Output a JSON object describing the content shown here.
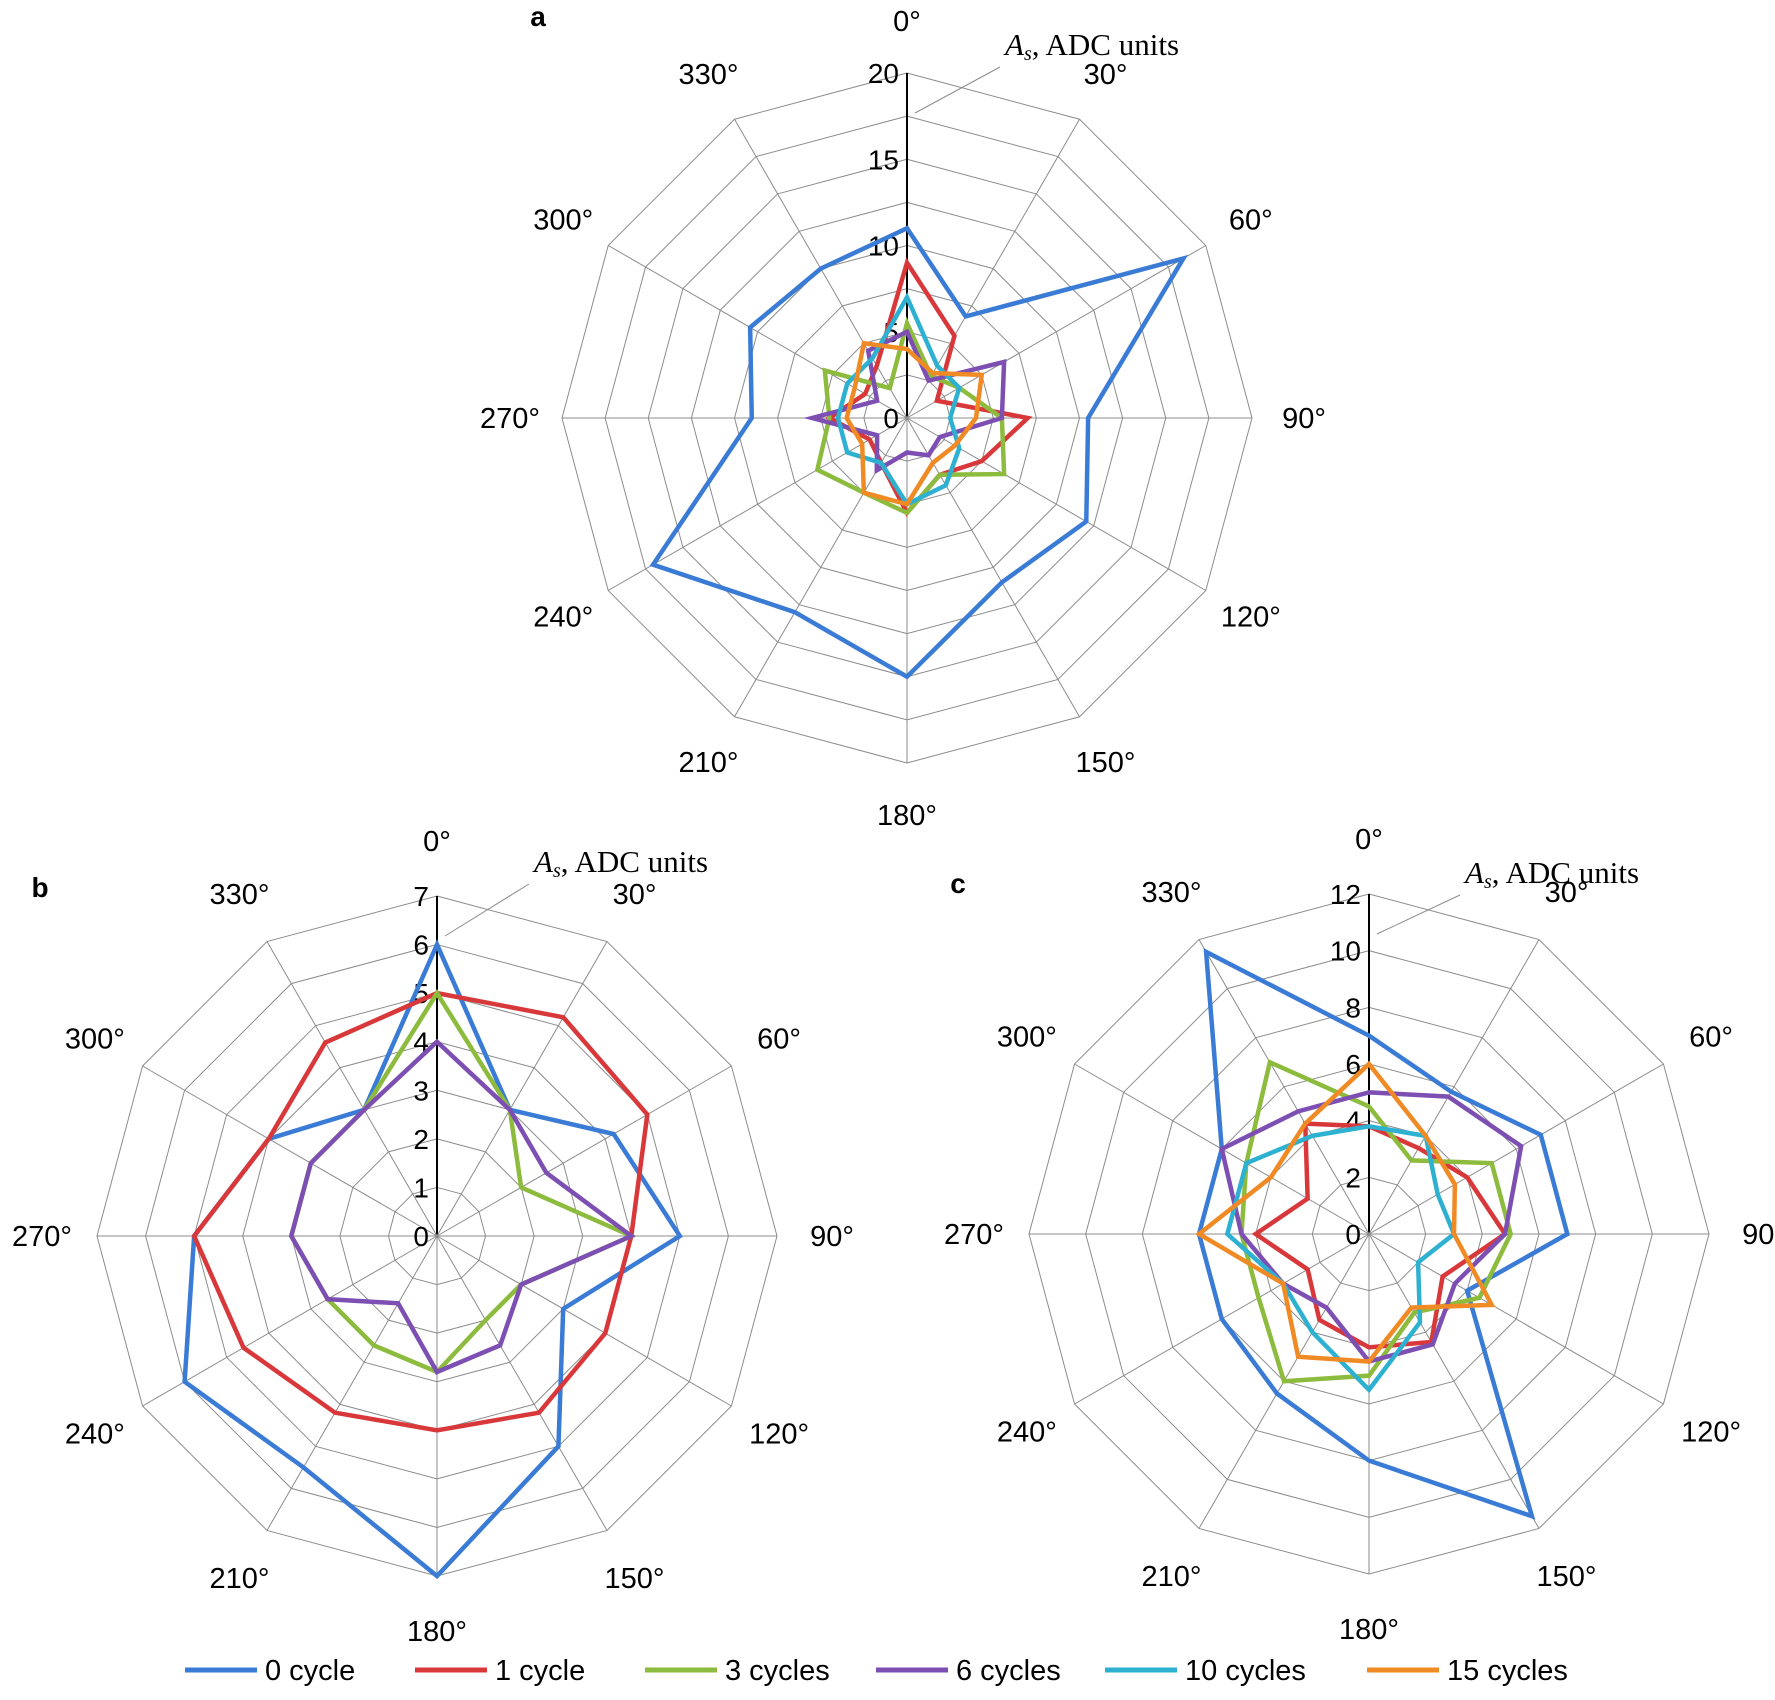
{
  "colors": {
    "0 cycle": "#3a7bd5",
    "1 cycle": "#d9383a",
    "3 cycles": "#8dbb3e",
    "6 cycles": "#7d4fb3",
    "10 cycles": "#2eb1d1",
    "15 cycles": "#f08a24"
  },
  "legend": {
    "items": [
      "0 cycle",
      "1 cycle",
      "3 cycles",
      "6 cycles",
      "10 cycles",
      "15 cycles"
    ]
  },
  "chart_data": [
    {
      "type": "radar",
      "panel": "a",
      "radial_label_symbol": "A",
      "radial_label_subscript": "s",
      "radial_label_rest": ", ADC units",
      "angles": [
        "0°",
        "30°",
        "60°",
        "90°",
        "120°",
        "150°",
        "180°",
        "210°",
        "240°",
        "270°",
        "300°",
        "330°"
      ],
      "rlim": [
        0,
        20
      ],
      "ticks": [
        "0",
        "5",
        "10",
        "15",
        "20"
      ],
      "series": [
        {
          "name": "0 cycle",
          "values": [
            11,
            6.8,
            18.5,
            10.5,
            12,
            11,
            15,
            13,
            17,
            9,
            10.5,
            10
          ]
        },
        {
          "name": "1 cycle",
          "values": [
            9,
            5.5,
            2,
            7,
            5,
            3.8,
            5.5,
            3,
            2.5,
            4.5,
            2.8,
            3.5
          ]
        },
        {
          "name": "3 cycles",
          "values": [
            5.5,
            2.8,
            3.5,
            5.5,
            6.5,
            3.8,
            5.5,
            5,
            6,
            4.5,
            5.5,
            2
          ]
        },
        {
          "name": "6 cycles",
          "values": [
            5,
            2.5,
            6.5,
            5.5,
            2.2,
            2.5,
            2,
            3.5,
            2,
            5.5,
            2,
            4.5
          ]
        },
        {
          "name": "10 cycles",
          "values": [
            7,
            3.5,
            3.5,
            2.5,
            3.5,
            4.5,
            5,
            3,
            4,
            4,
            4,
            4
          ]
        },
        {
          "name": "15 cycles",
          "values": [
            4,
            3,
            5,
            4,
            3.2,
            3,
            5,
            5,
            3,
            3.5,
            3.5,
            5
          ]
        }
      ]
    },
    {
      "type": "radar",
      "panel": "b",
      "radial_label_symbol": "A",
      "radial_label_subscript": "s",
      "radial_label_rest": ", ADC units",
      "angles": [
        "0°",
        "30°",
        "60°",
        "90°",
        "120°",
        "150°",
        "180°",
        "210°",
        "240°",
        "270°",
        "300°",
        "330°"
      ],
      "rlim": [
        0,
        7
      ],
      "ticks": [
        "0",
        "1",
        "2",
        "3",
        "4",
        "5",
        "6",
        "7"
      ],
      "series": [
        {
          "name": "0 cycle",
          "values": [
            6,
            3,
            4.2,
            5,
            3,
            5,
            7,
            5.5,
            6,
            5,
            4,
            3
          ]
        },
        {
          "name": "1 cycle",
          "values": [
            5,
            5.2,
            5,
            4,
            4,
            4.2,
            4,
            4.2,
            4.6,
            5,
            4,
            4.6
          ]
        },
        {
          "name": "3 cycles",
          "values": [
            5,
            3,
            2,
            4,
            2,
            2,
            2.8,
            2.6,
            2.6,
            3,
            3,
            3
          ]
        },
        {
          "name": "6 cycles",
          "values": [
            4,
            3,
            2.6,
            4,
            2,
            2.6,
            2.8,
            1.6,
            2.6,
            3,
            3,
            3
          ]
        },
        {
          "name": "10 cycles",
          "values": [
            0,
            0,
            0,
            0,
            0,
            0,
            0,
            0,
            0,
            0,
            0,
            0
          ]
        },
        {
          "name": "15 cycles",
          "values": [
            0,
            0,
            0,
            0,
            0,
            0,
            0,
            0,
            0,
            0,
            0,
            0
          ]
        }
      ]
    },
    {
      "type": "radar",
      "panel": "c",
      "radial_label_symbol": "A",
      "radial_label_subscript": "s",
      "radial_label_rest": ", ADC units",
      "angles": [
        "0°",
        "30°",
        "60°",
        "90°",
        "120°",
        "150°",
        "180°",
        "210°",
        "240°",
        "270°",
        "300°",
        "330°"
      ],
      "rlim": [
        0,
        12
      ],
      "ticks": [
        "0",
        "2",
        "4",
        "6",
        "8",
        "10",
        "12"
      ],
      "series": [
        {
          "name": "0 cycle",
          "values": [
            7,
            5.8,
            7,
            7,
            4,
            11.5,
            8,
            6.5,
            6,
            6,
            6,
            11.5
          ]
        },
        {
          "name": "1 cycle",
          "values": [
            3.8,
            3.5,
            4,
            4.8,
            3,
            4.4,
            4,
            3.5,
            2.5,
            4,
            2.5,
            4.5
          ]
        },
        {
          "name": "3 cycles",
          "values": [
            4.5,
            3,
            5,
            5,
            4.5,
            3.2,
            5,
            6,
            4.5,
            4.5,
            5,
            7
          ]
        },
        {
          "name": "6 cycles",
          "values": [
            5,
            5.6,
            6.2,
            4.8,
            3.5,
            4.5,
            4.5,
            3,
            3.5,
            4.5,
            6,
            5
          ]
        },
        {
          "name": "10 cycles",
          "values": [
            3.8,
            4,
            2.8,
            3,
            2,
            3.6,
            5.5,
            4,
            3.5,
            5,
            5,
            4
          ]
        },
        {
          "name": "15 cycles",
          "values": [
            6,
            4,
            3.5,
            3,
            5,
            3,
            4.5,
            5,
            3.5,
            6,
            4,
            4.5
          ]
        }
      ]
    }
  ]
}
